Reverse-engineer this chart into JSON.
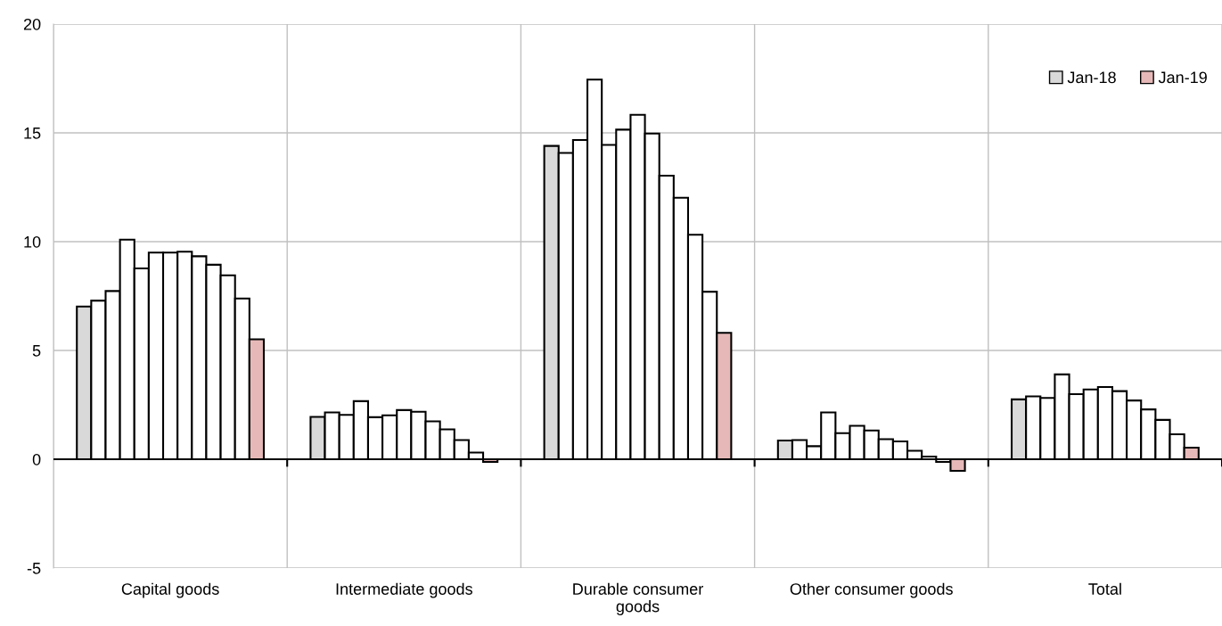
{
  "chart_data": {
    "type": "bar",
    "categories": [
      "Capital goods",
      "Intermediate goods",
      "Durable consumer\ngoods",
      "Other consumer goods",
      "Total"
    ],
    "series": [
      {
        "name": "Jan-18",
        "color": "#d9d9d9",
        "values": [
          7.02,
          1.95,
          14.4,
          0.86,
          2.75
        ]
      },
      {
        "color": "#ffffff",
        "values": [
          7.29,
          2.15,
          14.08,
          0.88,
          2.89
        ]
      },
      {
        "color": "#ffffff",
        "values": [
          7.73,
          2.04,
          14.67,
          0.6,
          2.82
        ]
      },
      {
        "color": "#ffffff",
        "values": [
          10.09,
          2.67,
          17.45,
          2.15,
          3.9
        ]
      },
      {
        "color": "#ffffff",
        "values": [
          8.77,
          1.93,
          14.45,
          1.2,
          2.99
        ]
      },
      {
        "color": "#ffffff",
        "values": [
          9.5,
          2.02,
          15.15,
          1.54,
          3.21
        ]
      },
      {
        "color": "#ffffff",
        "values": [
          9.5,
          2.26,
          15.83,
          1.32,
          3.32
        ]
      },
      {
        "color": "#ffffff",
        "values": [
          9.54,
          2.18,
          14.97,
          0.92,
          3.13
        ]
      },
      {
        "color": "#ffffff",
        "values": [
          9.33,
          1.74,
          13.03,
          0.82,
          2.7
        ]
      },
      {
        "color": "#ffffff",
        "values": [
          8.94,
          1.37,
          12.02,
          0.39,
          2.29
        ]
      },
      {
        "color": "#ffffff",
        "values": [
          8.45,
          0.88,
          10.32,
          0.12,
          1.81
        ]
      },
      {
        "color": "#ffffff",
        "values": [
          7.39,
          0.31,
          7.7,
          -0.12,
          1.15
        ]
      },
      {
        "name": "Jan-19",
        "color": "#e6b9b8",
        "values": [
          5.51,
          -0.12,
          5.81,
          -0.53,
          0.53
        ]
      }
    ],
    "ylim": [
      -5,
      20
    ],
    "yticks": [
      -5,
      0,
      5,
      10,
      15,
      20
    ],
    "grid": true,
    "legend": "top right"
  }
}
